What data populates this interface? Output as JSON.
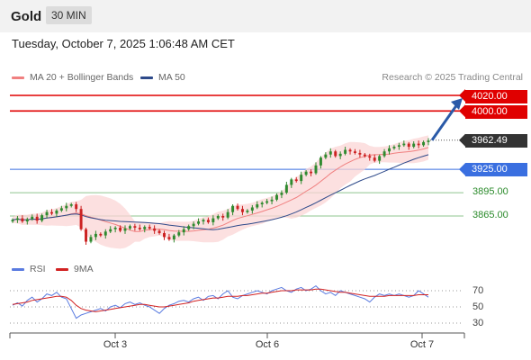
{
  "header": {
    "title": "Gold",
    "timeframe": "30 MIN"
  },
  "datetime": "Tuesday, October 7, 2025 1:06:48 AM CET",
  "legend": {
    "ma20_label": "MA 20 + Bollinger Bands",
    "ma50_label": "MA 50",
    "credit": "Research © 2025 Trading Central",
    "rsi_label": "RSI",
    "ma9_label": "9MA"
  },
  "colors": {
    "resistance": "#e00000",
    "pivot": "#3a6fe0",
    "support": "#2a8a2a",
    "last": "#333333",
    "bollinger_fill": "#fbd5d5",
    "ma20": "#f08080",
    "ma50": "#2e4a8a",
    "candle_up": "#2f8a2f",
    "candle_down": "#cc2222",
    "rsi": "#5a7be0",
    "rsi_ma": "#d22222",
    "arrow": "#2a5aa8"
  },
  "levels": {
    "r2": "4020.00",
    "r1": "4000.00",
    "last": "3962.49",
    "pivot": "3925.00",
    "s1": "3895.00",
    "s2": "3865.00"
  },
  "rsi_ticks": [
    "70",
    "50",
    "30"
  ],
  "date_ticks": [
    "Oct 3",
    "Oct 6",
    "Oct 7"
  ],
  "chart_data": [
    {
      "type": "candlestick",
      "title": "Gold 30 MIN",
      "ylim": [
        3820,
        4030
      ],
      "x_dates": [
        "Oct 3",
        "Oct 6",
        "Oct 7"
      ],
      "price_series": [
        3860,
        3862,
        3858,
        3861,
        3864,
        3859,
        3866,
        3870,
        3868,
        3872,
        3875,
        3878,
        3880,
        3874,
        3848,
        3832,
        3838,
        3842,
        3840,
        3845,
        3848,
        3850,
        3846,
        3849,
        3852,
        3850,
        3848,
        3851,
        3849,
        3846,
        3843,
        3838,
        3835,
        3840,
        3844,
        3848,
        3852,
        3855,
        3858,
        3860,
        3857,
        3862,
        3865,
        3863,
        3870,
        3878,
        3874,
        3870,
        3872,
        3876,
        3880,
        3882,
        3884,
        3886,
        3892,
        3895,
        3905,
        3912,
        3910,
        3918,
        3922,
        3920,
        3930,
        3940,
        3944,
        3948,
        3942,
        3945,
        3950,
        3948,
        3946,
        3944,
        3942,
        3940,
        3936,
        3942,
        3948,
        3952,
        3954,
        3956,
        3958,
        3954,
        3958,
        3956,
        3960,
        3962
      ],
      "levels": [
        {
          "name": "r2",
          "value": 4020
        },
        {
          "name": "r1",
          "value": 4000
        },
        {
          "name": "pivot",
          "value": 3925
        },
        {
          "name": "s1",
          "value": 3895
        },
        {
          "name": "s2",
          "value": 3865
        },
        {
          "name": "last",
          "value": 3962.49
        }
      ]
    },
    {
      "type": "line",
      "ylim": [
        20,
        80
      ],
      "yticks": [
        70,
        50,
        30
      ],
      "series": [
        {
          "name": "RSI",
          "values": [
            52,
            55,
            51,
            58,
            62,
            56,
            60,
            66,
            64,
            68,
            62,
            60,
            48,
            36,
            40,
            42,
            44,
            46,
            48,
            45,
            50,
            52,
            49,
            54,
            56,
            53,
            55,
            52,
            50,
            46,
            42,
            48,
            52,
            54,
            57,
            58,
            56,
            60,
            62,
            58,
            63,
            64,
            60,
            66,
            70,
            62,
            60,
            64,
            66,
            68,
            70,
            68,
            66,
            70,
            72,
            74,
            70,
            68,
            72,
            74,
            70,
            72,
            76,
            70,
            66,
            68,
            64,
            70,
            68,
            66,
            64,
            62,
            60,
            56,
            62,
            66,
            64,
            66,
            64,
            66,
            64,
            62,
            64,
            70,
            66,
            62
          ]
        },
        {
          "name": "9MA",
          "values": [
            53,
            54,
            55,
            56,
            58,
            59,
            60,
            61,
            62,
            63,
            63,
            62,
            58,
            52,
            48,
            46,
            45,
            44,
            45,
            46,
            47,
            48,
            49,
            50,
            51,
            52,
            53,
            53,
            52,
            51,
            50,
            50,
            51,
            52,
            53,
            54,
            55,
            57,
            58,
            59,
            60,
            61,
            61,
            62,
            63,
            63,
            63,
            64,
            64,
            65,
            66,
            67,
            67,
            68,
            69,
            70,
            70,
            70,
            71,
            71,
            71,
            71,
            72,
            72,
            71,
            70,
            69,
            68,
            68,
            67,
            66,
            65,
            64,
            63,
            63,
            63,
            63,
            64,
            64,
            64,
            64,
            64,
            64,
            65,
            65,
            65
          ]
        }
      ]
    }
  ]
}
